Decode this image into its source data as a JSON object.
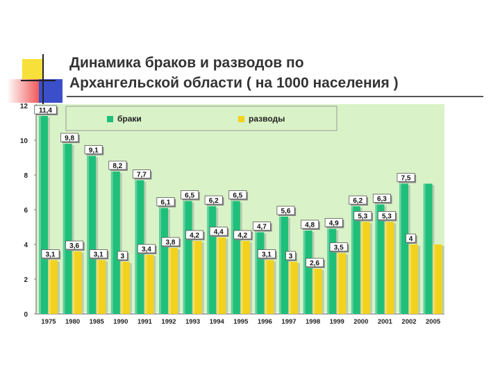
{
  "slide": {
    "title_line1": "Динамика браков и разводов по",
    "title_line2": "Архангельской области ( на 1000 населения )"
  },
  "colors": {
    "plot_background": "#d9f2c7",
    "marriages": "#1fbf7a",
    "divorces": "#f2d21c",
    "label_box": "#ffffff",
    "deco_yellow": "#f7e03a",
    "deco_red": "#f05a5a",
    "deco_blue": "#3a4fc9"
  },
  "chart_data": {
    "type": "bar",
    "categories": [
      "1975",
      "1980",
      "1985",
      "1990",
      "1991",
      "1992",
      "1993",
      "1994",
      "1995",
      "1996",
      "1997",
      "1998",
      "1999",
      "2000",
      "2001",
      "2002",
      "2005"
    ],
    "series": [
      {
        "name": "браки",
        "values": [
          11.4,
          9.8,
          9.1,
          8.2,
          7.7,
          6.1,
          6.5,
          6.2,
          6.5,
          4.7,
          5.6,
          4.8,
          4.9,
          6.2,
          6.3,
          7.5,
          7.5
        ],
        "labels": [
          "11,4",
          "9,8",
          "9,1",
          "8,2",
          "7,7",
          "6,1",
          "6,5",
          "6,2",
          "6,5",
          "4,7",
          "5,6",
          "4,8",
          "4,9",
          "6,2",
          "6,3",
          "7,5",
          "7,5"
        ]
      },
      {
        "name": "разводы",
        "values": [
          3.1,
          3.6,
          3.1,
          3,
          3.4,
          3.8,
          4.2,
          4.4,
          4.2,
          3.1,
          3,
          2.6,
          3.5,
          5.3,
          5.3,
          4,
          4
        ],
        "labels": [
          "3,1",
          "3,6",
          "3,1",
          "3",
          "3,4",
          "3,8",
          "4,2",
          "4,4",
          "4,2",
          "3,1",
          "3",
          "2,6",
          "3,5",
          "5,3",
          "5,3",
          "4",
          "4"
        ]
      }
    ],
    "label_visible": [
      [
        true,
        true,
        true,
        true,
        true,
        true,
        true,
        true,
        true,
        true,
        true,
        true,
        true,
        true,
        true,
        true,
        false
      ],
      [
        true,
        true,
        true,
        true,
        true,
        true,
        true,
        true,
        true,
        true,
        true,
        true,
        true,
        true,
        true,
        true,
        false
      ]
    ],
    "yticks": [
      "0",
      "2",
      "4",
      "6",
      "8",
      "10",
      "12"
    ],
    "ylim": [
      0,
      12
    ],
    "grid": false,
    "legend_position": "top-center"
  }
}
